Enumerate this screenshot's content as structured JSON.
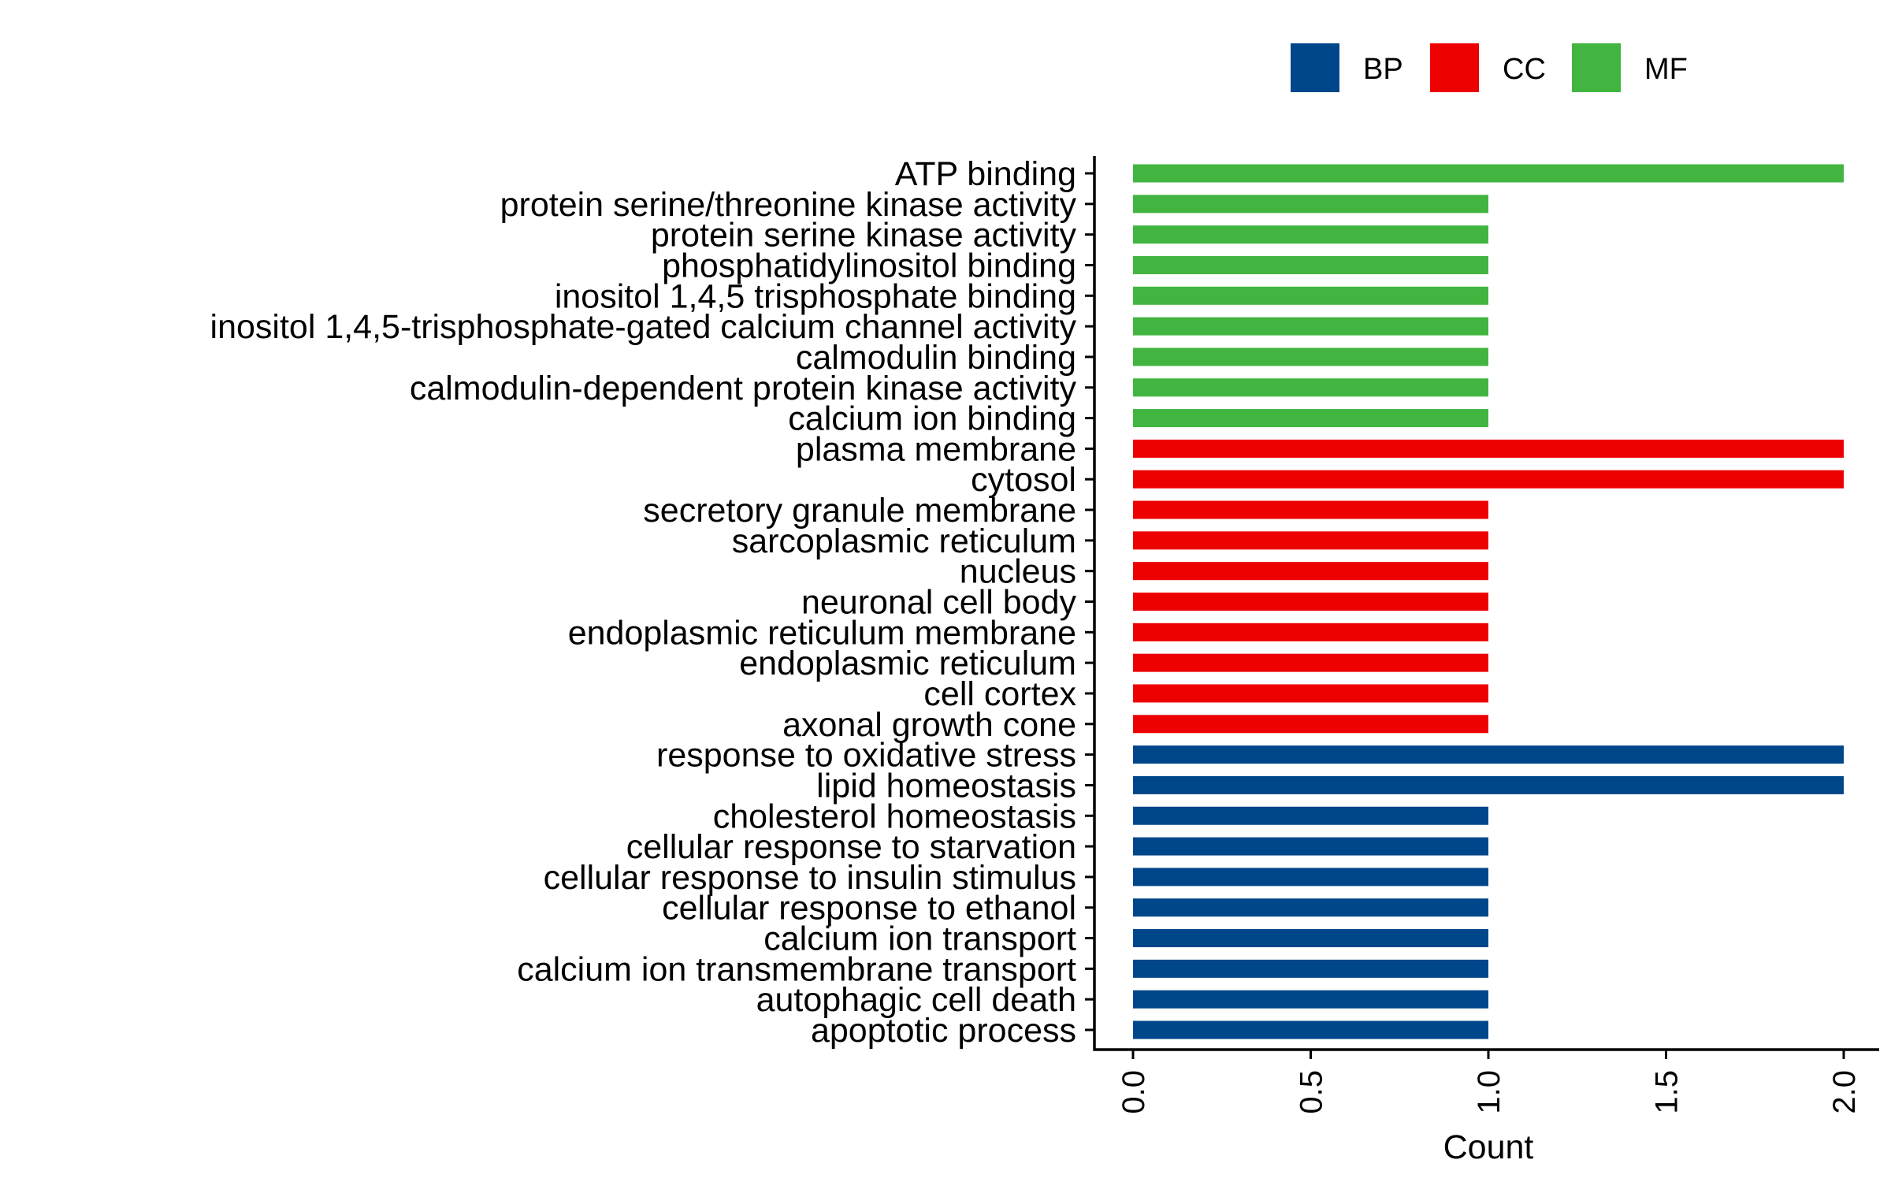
{
  "chart_data": {
    "type": "bar",
    "orientation": "horizontal",
    "title": "",
    "xlabel": "Count",
    "ylabel": "",
    "xlim": [
      0,
      2
    ],
    "xticks": [
      "0.0",
      "0.5",
      "1.0",
      "1.5",
      "2.0"
    ],
    "grid": false,
    "legend": {
      "position": "top-right",
      "entries": [
        {
          "name": "BP",
          "color": "#00468B"
        },
        {
          "name": "CC",
          "color": "#ED0000"
        },
        {
          "name": "MF",
          "color": "#42B540"
        }
      ]
    },
    "categories": [
      "ATP binding",
      "protein serine/threonine kinase activity",
      "protein serine kinase activity",
      "phosphatidylinositol binding",
      "inositol 1,4,5 trisphosphate binding",
      "inositol 1,4,5-trisphosphate-gated calcium channel activity",
      "calmodulin binding",
      "calmodulin-dependent protein kinase activity",
      "calcium ion binding",
      "plasma membrane",
      "cytosol",
      "secretory granule membrane",
      "sarcoplasmic reticulum",
      "nucleus",
      "neuronal cell body",
      "endoplasmic reticulum membrane",
      "endoplasmic reticulum",
      "cell cortex",
      "axonal growth cone",
      "response to oxidative stress",
      "lipid homeostasis",
      "cholesterol homeostasis",
      "cellular response to starvation",
      "cellular response to insulin stimulus",
      "cellular response to ethanol",
      "calcium ion transport",
      "calcium ion transmembrane transport",
      "autophagic cell death",
      "apoptotic process"
    ],
    "values": [
      2,
      1,
      1,
      1,
      1,
      1,
      1,
      1,
      1,
      2,
      2,
      1,
      1,
      1,
      1,
      1,
      1,
      1,
      1,
      2,
      2,
      1,
      1,
      1,
      1,
      1,
      1,
      1,
      1
    ],
    "groups": [
      "MF",
      "MF",
      "MF",
      "MF",
      "MF",
      "MF",
      "MF",
      "MF",
      "MF",
      "CC",
      "CC",
      "CC",
      "CC",
      "CC",
      "CC",
      "CC",
      "CC",
      "CC",
      "CC",
      "BP",
      "BP",
      "BP",
      "BP",
      "BP",
      "BP",
      "BP",
      "BP",
      "BP",
      "BP"
    ]
  }
}
